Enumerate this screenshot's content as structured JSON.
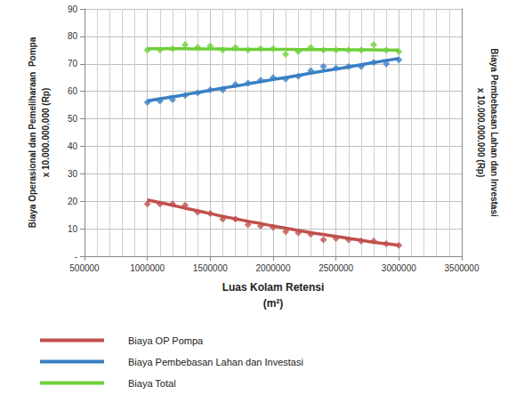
{
  "chart_data": {
    "type": "scatter",
    "xlabel": "Luas Kolam Retensi\n(m²)",
    "ylabel": "Biaya Operasional dan Pemeliharaan  Pompa\nx 10.000.000.000 (Rp)",
    "y2label": "Biaya Pembebasan Lahan dan Investasi\nx 10.000.000.000 (Rp)",
    "x": [
      1000000,
      1100000,
      1200000,
      1300000,
      1400000,
      1500000,
      1600000,
      1700000,
      1800000,
      1900000,
      2000000,
      2100000,
      2200000,
      2300000,
      2400000,
      2500000,
      2600000,
      2700000,
      2800000,
      2900000,
      3000000
    ],
    "series": [
      {
        "name": "Biaya OP Pompa",
        "color": "#c0504d",
        "marker": "diamond",
        "values": [
          19,
          19,
          19,
          18.5,
          16,
          15.5,
          13.5,
          13.5,
          11.5,
          11,
          10.5,
          9,
          8.5,
          8,
          6,
          6.5,
          6,
          5.5,
          5.5,
          4.5,
          4
        ],
        "trend": [
          20.5,
          19.5,
          18.5,
          17.5,
          16.5,
          15.5,
          14.5,
          13.6,
          12.7,
          11.9,
          11,
          10.2,
          9.4,
          8.6,
          7.9,
          7.2,
          6.5,
          5.8,
          5.1,
          4.5,
          4
        ]
      },
      {
        "name": "Biaya Pembebasan Lahan dan Investasi",
        "color": "#3a7fc4",
        "marker": "diamond",
        "values": [
          56,
          56.5,
          57,
          58.5,
          59.5,
          60.5,
          60.5,
          62.5,
          63,
          64,
          65,
          64.5,
          65.5,
          67.5,
          69,
          68.5,
          69,
          69,
          70.5,
          70,
          71.5
        ],
        "trend": [
          56.5,
          57.3,
          58,
          58.8,
          59.6,
          60.4,
          61.2,
          61.9,
          62.7,
          63.5,
          64.3,
          65,
          65.8,
          66.6,
          67.4,
          68.1,
          68.9,
          69.7,
          70.5,
          71.2,
          72
        ]
      },
      {
        "name": "Biaya Total",
        "color": "#6fcf3a",
        "marker": "diamond",
        "values": [
          75,
          75,
          75.5,
          77,
          76,
          76.5,
          75,
          76,
          75,
          75.5,
          75.5,
          73.5,
          74.5,
          76,
          75,
          75,
          75,
          75,
          77,
          75,
          74.5
        ],
        "trend": [
          75.5,
          75.5,
          75.5,
          75.5,
          75.4,
          75.4,
          75.4,
          75.3,
          75.3,
          75.3,
          75.3,
          75.3,
          75.2,
          75.2,
          75.2,
          75.2,
          75.1,
          75.1,
          75.1,
          75,
          75
        ]
      }
    ],
    "xlim": [
      500000,
      3500000
    ],
    "xticks": [
      500000,
      1000000,
      1500000,
      2000000,
      2500000,
      3000000,
      3500000
    ],
    "ylim": [
      0,
      90
    ],
    "yticks": [
      {
        "value": 0,
        "label": "-"
      },
      10,
      20,
      30,
      40,
      50,
      60,
      70,
      80,
      90
    ],
    "grid": true,
    "legend": "bottom-left"
  }
}
